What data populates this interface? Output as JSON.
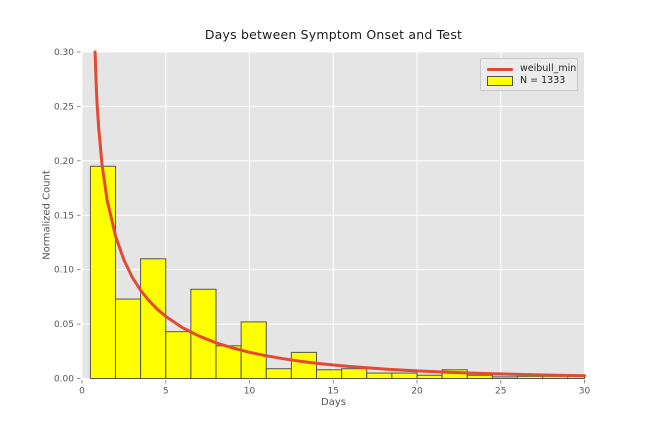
{
  "figure": {
    "title": "Days between Symptom Onset and Test",
    "xlabel": "Days",
    "ylabel": "Normalized Count"
  },
  "legend": {
    "entries": [
      {
        "type": "line",
        "label": "weibull_min",
        "color": "#e24a33"
      },
      {
        "type": "patch",
        "label": "N = 1333",
        "fill": "#ffff00",
        "edge": "#55554a"
      }
    ]
  },
  "chart_data": {
    "type": "bar",
    "subtype": "histogram-with-fit-line",
    "title": "Days between Symptom Onset and Test",
    "xlabel": "Days",
    "ylabel": "Normalized Count",
    "xlim": [
      0,
      30
    ],
    "ylim": [
      0.0,
      0.3
    ],
    "x_ticks": [
      0,
      5,
      10,
      15,
      20,
      25,
      30
    ],
    "y_ticks": [
      0.0,
      0.05,
      0.1,
      0.15,
      0.2,
      0.25,
      0.3
    ],
    "y_tick_labels": [
      "0.00",
      "0.05",
      "0.10",
      "0.15",
      "0.20",
      "0.25",
      "0.30"
    ],
    "grid": true,
    "legend_position": "upper right",
    "histogram": {
      "label": "N = 1333",
      "sample_size": 1333,
      "bin_start": 0.5,
      "bin_width": 1.5,
      "bin_edges": [
        0.5,
        2.0,
        3.5,
        5.0,
        6.5,
        8.0,
        9.5,
        11.0,
        12.5,
        14.0,
        15.5,
        17.0,
        18.5,
        20.0,
        21.5,
        23.0,
        24.5,
        26.0,
        27.5,
        29.0,
        30.5
      ],
      "heights": [
        0.195,
        0.073,
        0.11,
        0.043,
        0.082,
        0.03,
        0.052,
        0.009,
        0.024,
        0.008,
        0.009,
        0.005,
        0.005,
        0.003,
        0.008,
        0.003,
        0.0015,
        0.002,
        0.002,
        0.002
      ],
      "fill": "#ffff00",
      "edge": "#55554a"
    },
    "curve": {
      "label": "weibull_min",
      "color": "#e24a33",
      "line_width": 3,
      "x": [
        0.78,
        0.85,
        0.9,
        1.0,
        1.2,
        1.5,
        2.0,
        2.5,
        3.0,
        3.5,
        4.0,
        4.5,
        5.0,
        6.0,
        7.0,
        8.0,
        9.0,
        10.0,
        11.0,
        12.0,
        13.0,
        14.0,
        15.0,
        16.0,
        17.0,
        18.0,
        19.0,
        20.0,
        22.0,
        24.0,
        26.0,
        28.0,
        30.0
      ],
      "y": [
        0.3,
        0.27,
        0.252,
        0.229,
        0.196,
        0.164,
        0.131,
        0.109,
        0.093,
        0.081,
        0.0715,
        0.0636,
        0.0571,
        0.0467,
        0.0389,
        0.0328,
        0.028,
        0.0241,
        0.0209,
        0.0182,
        0.0159,
        0.014,
        0.0124,
        0.011,
        0.0098,
        0.0087,
        0.0078,
        0.007,
        0.0056,
        0.0046,
        0.0038,
        0.0031,
        0.0026
      ]
    },
    "colors": {
      "plot_bg": "#e5e5e5",
      "grid": "#ffffff",
      "tick_mark": "#8e8e8e",
      "tick_label": "#555555",
      "title": "#1c1c1c"
    }
  }
}
